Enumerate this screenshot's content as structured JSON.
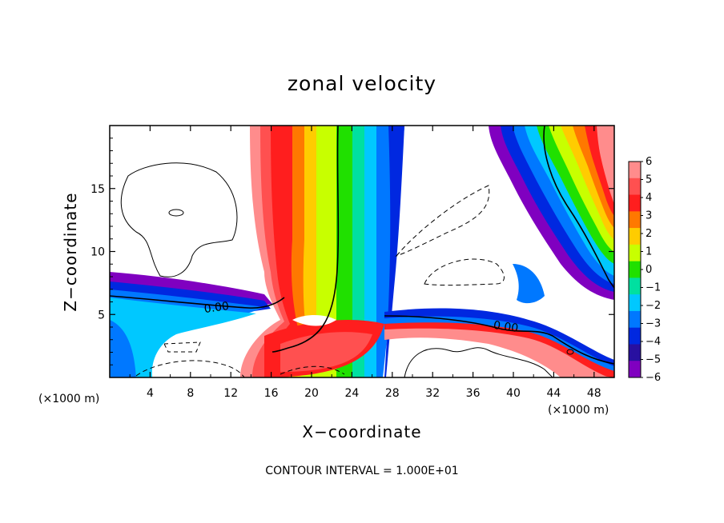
{
  "chart_data": {
    "type": "heatmap",
    "title": "zonal velocity",
    "xlabel": "X−coordinate",
    "ylabel": "Z−coordinate",
    "x_unit_label": "(×1000 m)",
    "y_unit_label": "(×1000 m)",
    "xlim": [
      0,
      50
    ],
    "ylim": [
      0,
      20
    ],
    "x_ticks": [
      4,
      8,
      12,
      16,
      20,
      24,
      28,
      32,
      36,
      40,
      44,
      48
    ],
    "y_ticks": [
      5,
      10,
      15
    ],
    "contour_labels": [
      "0.00",
      "0.00"
    ],
    "footer_note": "CONTOUR INTERVAL = 1.000E+01",
    "colorbar": {
      "ticks": [
        "6",
        "5",
        "4",
        "3",
        "2",
        "1",
        "0",
        "−1",
        "−2",
        "−3",
        "−4",
        "−5",
        "−6"
      ],
      "colors": [
        "#ff8c8c",
        "#ff5050",
        "#ff1e1e",
        "#ff7800",
        "#ffcc00",
        "#c8ff00",
        "#20e000",
        "#00e0a0",
        "#00c8ff",
        "#0078ff",
        "#0028e0",
        "#2810a0",
        "#8000c0"
      ]
    }
  }
}
